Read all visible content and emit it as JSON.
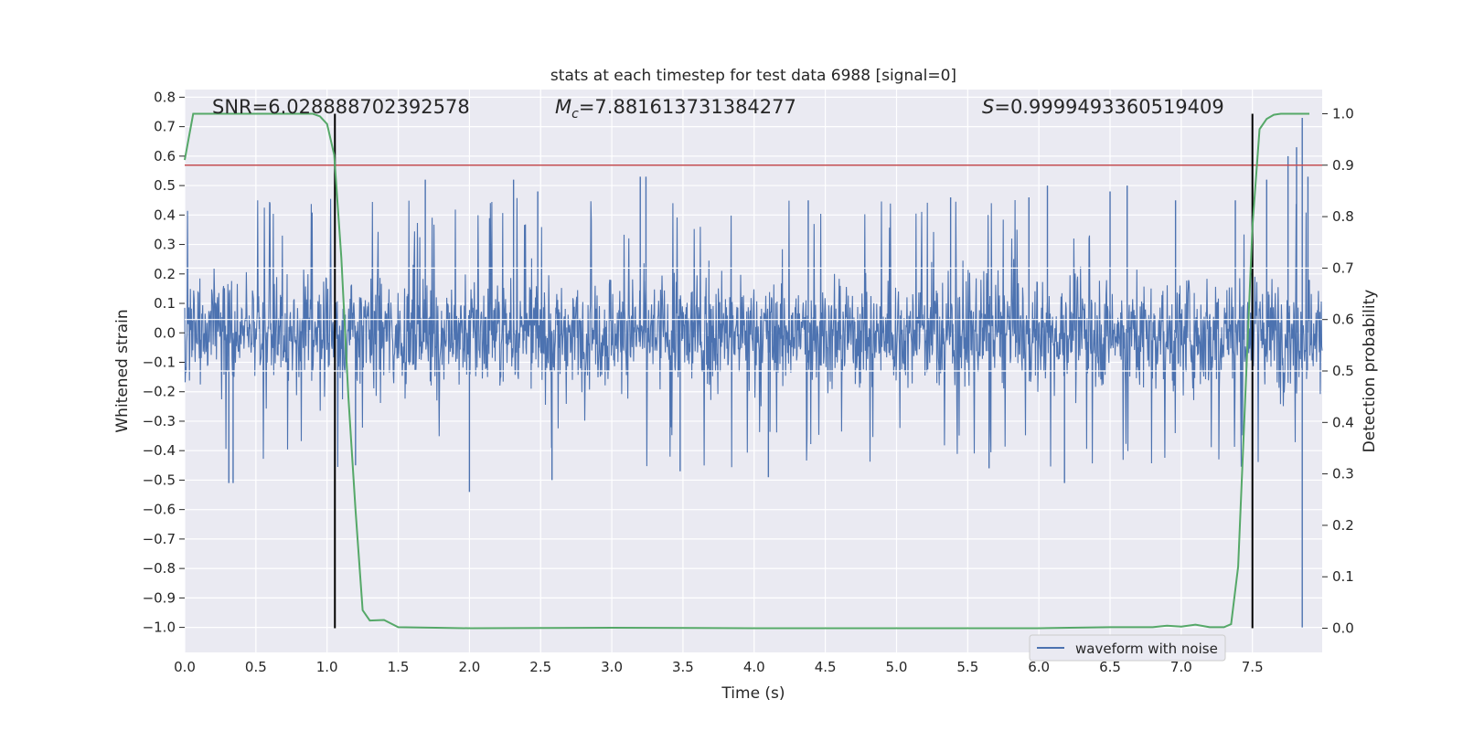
{
  "chart_data": {
    "type": "line",
    "title": "stats at each timestep for test data 6988 [signal=0]",
    "xlabel": "Time (s)",
    "ylabel": "Whitened strain",
    "y2label": "Detection probability",
    "xlim": [
      0.0,
      7.99
    ],
    "ylim": [
      -1.085,
      0.826
    ],
    "y2lim": [
      -0.047,
      1.047
    ],
    "x_ticks": [
      "0.0",
      "0.5",
      "1.0",
      "1.5",
      "2.0",
      "2.5",
      "3.0",
      "3.5",
      "4.0",
      "4.5",
      "5.0",
      "5.5",
      "6.0",
      "6.5",
      "7.0",
      "7.5"
    ],
    "y_ticks": [
      "0.8",
      "0.7",
      "0.6",
      "0.5",
      "0.4",
      "0.3",
      "0.2",
      "0.1",
      "0.0",
      "−0.1",
      "−0.2",
      "−0.3",
      "−0.4",
      "−0.5",
      "−0.6",
      "−0.7",
      "−0.8",
      "−0.9",
      "−1.0"
    ],
    "y2_ticks": [
      "1.0",
      "0.9",
      "0.8",
      "0.7",
      "0.6",
      "0.5",
      "0.4",
      "0.3",
      "0.2",
      "0.1",
      "0.0"
    ],
    "annotations": {
      "snr": "SNR=6.028888702392578",
      "mc": "=7.881613731384277",
      "s": "=0.9999493360519409"
    },
    "legend": {
      "label": "waveform with noise",
      "placement": "lower-right"
    },
    "grid": true,
    "threshold": 0.9,
    "vlines": [
      1.055,
      7.5
    ],
    "colors": {
      "waveform": "#4c72b0",
      "probability": "#55a868",
      "threshold": "#c44e52",
      "vline": "#000000",
      "background": "#eaeaf2",
      "grid": "#ffffff"
    },
    "series": [
      {
        "name": "waveform with noise",
        "axis": "left",
        "style": "dense-noise",
        "envelope_typical": [
          -0.33,
          0.33
        ],
        "peaks": [
          [
            0.31,
            -0.51
          ],
          [
            0.34,
            -0.51
          ],
          [
            1.2,
            -0.45
          ],
          [
            1.69,
            0.52
          ],
          [
            2.0,
            -0.54
          ],
          [
            2.31,
            0.52
          ],
          [
            2.48,
            0.48
          ],
          [
            2.58,
            -0.5
          ],
          [
            3.2,
            0.53
          ],
          [
            3.24,
            0.53
          ],
          [
            3.48,
            -0.47
          ],
          [
            4.1,
            -0.49
          ],
          [
            4.38,
            0.45
          ],
          [
            5.38,
            0.46
          ],
          [
            5.65,
            -0.46
          ],
          [
            5.93,
            0.46
          ],
          [
            6.06,
            0.5
          ],
          [
            6.18,
            -0.51
          ],
          [
            6.5,
            0.48
          ],
          [
            6.62,
            0.5
          ],
          [
            6.96,
            0.45
          ],
          [
            7.38,
            0.45
          ],
          [
            7.6,
            0.52
          ],
          [
            7.75,
            0.6
          ],
          [
            7.81,
            0.63
          ],
          [
            7.85,
            0.73
          ],
          [
            7.85,
            -1.0
          ],
          [
            7.89,
            0.53
          ]
        ]
      },
      {
        "name": "detection probability",
        "axis": "right",
        "x": [
          0.0,
          0.06,
          0.2,
          0.4,
          0.6,
          0.8,
          0.9,
          0.95,
          1.0,
          1.05,
          1.1,
          1.15,
          1.2,
          1.25,
          1.3,
          1.4,
          1.5,
          2.0,
          3.0,
          4.0,
          5.0,
          6.0,
          6.5,
          6.8,
          6.9,
          7.0,
          7.1,
          7.2,
          7.3,
          7.35,
          7.4,
          7.45,
          7.5,
          7.55,
          7.6,
          7.65,
          7.7,
          7.75,
          7.9
        ],
        "y": [
          0.91,
          1.0,
          1.0,
          1.0,
          1.0,
          1.0,
          1.0,
          0.995,
          0.98,
          0.92,
          0.72,
          0.45,
          0.23,
          0.035,
          0.015,
          0.016,
          0.002,
          0.0,
          0.001,
          0.0,
          0.0,
          0.0,
          0.002,
          0.002,
          0.005,
          0.003,
          0.007,
          0.002,
          0.002,
          0.008,
          0.12,
          0.45,
          0.78,
          0.97,
          0.99,
          0.998,
          1.0,
          1.0,
          1.0
        ]
      }
    ]
  }
}
